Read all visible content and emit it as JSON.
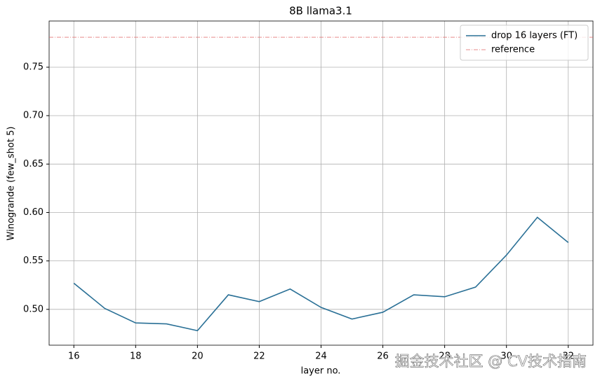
{
  "chart_data": {
    "type": "line",
    "title": "8B llama3.1",
    "xlabel": "layer no.",
    "ylabel": "Winogrande (few_shot 5)",
    "x": [
      16,
      17,
      18,
      19,
      20,
      21,
      22,
      23,
      24,
      25,
      26,
      27,
      28,
      29,
      30,
      31,
      32
    ],
    "series": [
      {
        "name": "drop 16 layers (FT)",
        "color": "#2a7096",
        "values": [
          0.527,
          0.501,
          0.486,
          0.485,
          0.478,
          0.515,
          0.508,
          0.521,
          0.502,
          0.49,
          0.497,
          0.515,
          0.513,
          0.523,
          0.556,
          0.595,
          0.569
        ]
      }
    ],
    "reference": {
      "name": "reference",
      "color": "#e06666",
      "value": 0.781
    },
    "xlim": [
      15.2,
      32.8
    ],
    "ylim": [
      0.463,
      0.7977
    ],
    "xticks": [
      16,
      18,
      20,
      22,
      24,
      26,
      28,
      30,
      32
    ],
    "yticks": [
      {
        "value": 0.5,
        "label": "0.50"
      },
      0.55,
      {
        "value": 0.6,
        "label": "0.60"
      },
      0.65,
      {
        "value": 0.7,
        "label": "0.70"
      },
      0.75
    ],
    "grid": true,
    "legend": "upper right",
    "watermark": "掘金技术社区 @ CV技术指南"
  }
}
